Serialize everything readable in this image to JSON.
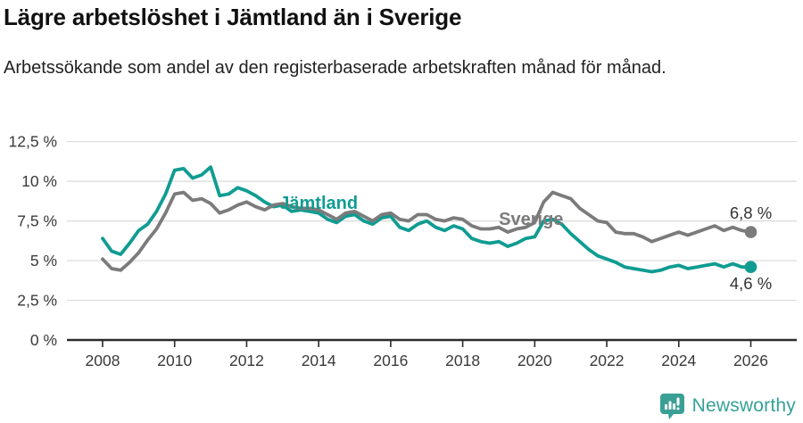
{
  "chart_data": {
    "type": "line",
    "title": "Lägre arbetslöshet i Jämtland än i Sverige",
    "subtitle": "Arbetssökande som andel av den registerbaserade arbetskraften månad för månad.",
    "x_axis": {
      "range": [
        2008,
        2026
      ],
      "tick_years": [
        "2008",
        "2010",
        "2012",
        "2014",
        "2016",
        "2018",
        "2020",
        "2022",
        "2024",
        "2026"
      ]
    },
    "y_axis": {
      "range": [
        0,
        12.5
      ],
      "grid": true,
      "ticks": [
        {
          "value": 12.5,
          "label": "12,5 %"
        },
        {
          "value": 10,
          "label": "10 %"
        },
        {
          "value": 7.5,
          "label": "7,5 %"
        },
        {
          "value": 5,
          "label": "5 %"
        },
        {
          "value": 2.5,
          "label": "2,5 %"
        },
        {
          "value": 0,
          "label": "0 %"
        }
      ]
    },
    "x_start": 2008,
    "x_step": 0.25,
    "series": [
      {
        "name": "Jämtland",
        "color": "#109c92",
        "end_value": 4.6,
        "end_value_label": "4,6 %",
        "end_label_position": "below",
        "inline_label": {
          "text": "Jämtland",
          "year": 2014.0,
          "value": 8.67
        },
        "values": [
          6.4,
          5.6,
          5.4,
          6.1,
          6.9,
          7.3,
          8.1,
          9.2,
          10.7,
          10.8,
          10.2,
          10.4,
          10.9,
          9.1,
          9.2,
          9.6,
          9.4,
          9.1,
          8.7,
          8.4,
          8.5,
          8.1,
          8.2,
          8.1,
          8.0,
          7.6,
          7.4,
          7.8,
          7.9,
          7.5,
          7.3,
          7.7,
          7.8,
          7.1,
          6.9,
          7.3,
          7.5,
          7.1,
          6.9,
          7.2,
          7.0,
          6.4,
          6.2,
          6.1,
          6.2,
          5.9,
          6.1,
          6.4,
          6.5,
          7.5,
          7.6,
          7.3,
          6.7,
          6.2,
          5.7,
          5.3,
          5.1,
          4.9,
          4.6,
          4.5,
          4.4,
          4.3,
          4.4,
          4.6,
          4.7,
          4.5,
          4.6,
          4.7,
          4.8,
          4.6,
          4.8,
          4.6,
          4.6
        ]
      },
      {
        "name": "Sverige",
        "color": "#7b7b7b",
        "end_value": 6.8,
        "end_value_label": "6,8 %",
        "end_label_position": "above",
        "inline_label": {
          "text": "Sverige",
          "year": 2019.9,
          "value": 7.66
        },
        "values": [
          5.1,
          4.5,
          4.4,
          4.9,
          5.5,
          6.3,
          7.0,
          8.0,
          9.2,
          9.3,
          8.8,
          8.9,
          8.6,
          8.0,
          8.2,
          8.5,
          8.7,
          8.4,
          8.2,
          8.5,
          8.6,
          8.4,
          8.3,
          8.3,
          8.2,
          7.9,
          7.6,
          8.0,
          8.1,
          7.8,
          7.5,
          7.9,
          8.0,
          7.6,
          7.5,
          7.9,
          7.9,
          7.6,
          7.5,
          7.7,
          7.6,
          7.2,
          7.0,
          7.0,
          7.1,
          6.8,
          7.0,
          7.1,
          7.4,
          8.7,
          9.3,
          9.1,
          8.9,
          8.3,
          7.9,
          7.5,
          7.4,
          6.8,
          6.7,
          6.7,
          6.5,
          6.2,
          6.4,
          6.6,
          6.8,
          6.6,
          6.8,
          7.0,
          7.2,
          6.9,
          7.1,
          6.9,
          6.8
        ]
      }
    ],
    "colors": {
      "grid": "#d9d9d9",
      "axis": "#2b2b2b",
      "tick_label": "#3a3a3a",
      "end_label": "#333333"
    }
  },
  "footer": {
    "brand": "Newsworthy",
    "brand_color": "#35a197"
  }
}
